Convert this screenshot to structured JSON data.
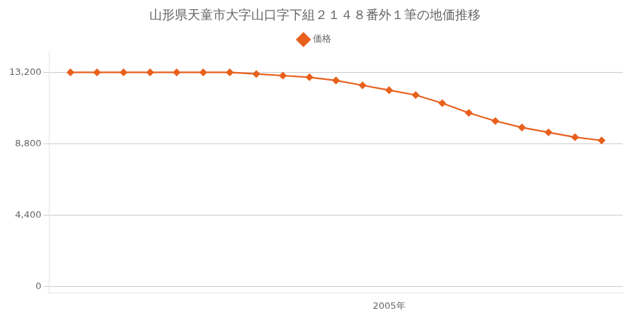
{
  "chart_data": {
    "type": "line",
    "title": "山形県天童市大字山口字下組２１４８番外１筆の地価推移",
    "x": [
      1993,
      1994,
      1995,
      1996,
      1997,
      1998,
      1999,
      2000,
      2001,
      2002,
      2003,
      2004,
      2005,
      2006,
      2007,
      2008,
      2009,
      2010,
      2011,
      2012,
      2013
    ],
    "series": [
      {
        "name": "価格",
        "color": "#e8601c",
        "marker": "diamond",
        "values": [
          13200,
          13200,
          13200,
          13200,
          13200,
          13200,
          13200,
          13100,
          13000,
          12900,
          12700,
          12400,
          12100,
          11800,
          11300,
          10700,
          10200,
          9800,
          9500,
          9200,
          9000
        ]
      }
    ],
    "xlim": [
      1992.2,
      2013.8
    ],
    "xticks": [
      {
        "value": 2005,
        "label": "2005年"
      }
    ],
    "ylim": [
      -400,
      14500
    ],
    "yticks": [
      0,
      {
        "value": 4400,
        "label": "4,400"
      },
      {
        "value": 8800,
        "label": "8,800"
      },
      {
        "value": 13200,
        "label": "13,200"
      }
    ],
    "grid": "y",
    "legend": "top"
  }
}
